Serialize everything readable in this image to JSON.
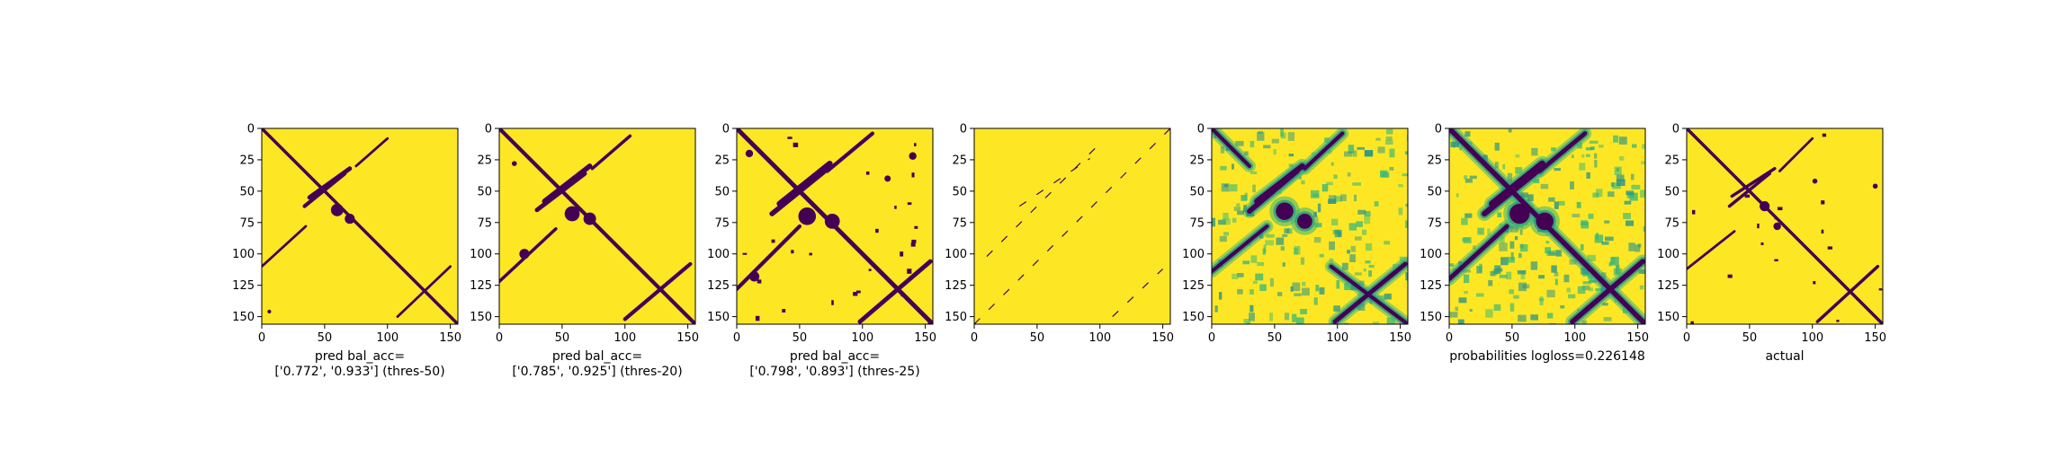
{
  "figure": {
    "background": "#ffffff"
  },
  "colormap": {
    "low": "#440154",
    "mid_low": "#31688e",
    "mid": "#21918c",
    "mid_high": "#35b779",
    "high": "#fde725"
  },
  "chart_data": [
    {
      "type": "heatmap",
      "xlabel": "pred bal_acc=\n['0.772', '0.933'] (thres-50)",
      "xlim": [
        0,
        156
      ],
      "ylim": [
        156,
        0
      ],
      "x_ticks": [
        0,
        50,
        100,
        150
      ],
      "y_ticks": [
        0,
        25,
        50,
        75,
        100,
        125,
        150
      ],
      "binary": true,
      "features": [
        {
          "kind": "diag",
          "from": [
            0,
            0
          ],
          "to": [
            156,
            156
          ],
          "w": 2.5
        },
        {
          "kind": "band",
          "from": [
            38,
            55
          ],
          "to": [
            70,
            32
          ],
          "w": 3.5
        },
        {
          "kind": "band",
          "from": [
            34,
            62
          ],
          "to": [
            66,
            36
          ],
          "w": 3
        },
        {
          "kind": "band",
          "from": [
            75,
            30
          ],
          "to": [
            100,
            8
          ],
          "w": 2
        },
        {
          "kind": "band",
          "from": [
            0,
            110
          ],
          "to": [
            35,
            78
          ],
          "w": 2
        },
        {
          "kind": "band",
          "from": [
            108,
            150
          ],
          "to": [
            150,
            110
          ],
          "w": 2
        },
        {
          "kind": "blob",
          "at": [
            60,
            65
          ],
          "r": 5
        },
        {
          "kind": "blob",
          "at": [
            70,
            72
          ],
          "r": 4
        },
        {
          "kind": "blob",
          "at": [
            6,
            146
          ],
          "r": 1.5
        }
      ]
    },
    {
      "type": "heatmap",
      "xlabel": "pred bal_acc=\n['0.785', '0.925'] (thres-20)",
      "xlim": [
        0,
        156
      ],
      "ylim": [
        156,
        0
      ],
      "x_ticks": [
        0,
        50,
        100,
        150
      ],
      "y_ticks": [
        0,
        25,
        50,
        75,
        100,
        125,
        150
      ],
      "binary": true,
      "features": [
        {
          "kind": "diag",
          "from": [
            0,
            0
          ],
          "to": [
            156,
            156
          ],
          "w": 3
        },
        {
          "kind": "band",
          "from": [
            36,
            58
          ],
          "to": [
            72,
            30
          ],
          "w": 4
        },
        {
          "kind": "band",
          "from": [
            30,
            65
          ],
          "to": [
            68,
            36
          ],
          "w": 3.5
        },
        {
          "kind": "band",
          "from": [
            74,
            32
          ],
          "to": [
            104,
            6
          ],
          "w": 2.5
        },
        {
          "kind": "band",
          "from": [
            0,
            122
          ],
          "to": [
            45,
            80
          ],
          "w": 2.5
        },
        {
          "kind": "band",
          "from": [
            100,
            152
          ],
          "to": [
            152,
            108
          ],
          "w": 3
        },
        {
          "kind": "blob",
          "at": [
            58,
            68
          ],
          "r": 6
        },
        {
          "kind": "blob",
          "at": [
            72,
            72
          ],
          "r": 5
        },
        {
          "kind": "blob",
          "at": [
            20,
            100
          ],
          "r": 4
        },
        {
          "kind": "blob",
          "at": [
            12,
            28
          ],
          "r": 2
        }
      ]
    },
    {
      "type": "heatmap",
      "xlabel": "pred bal_acc=\n['0.798', '0.893'] (thres-25)",
      "xlim": [
        0,
        156
      ],
      "ylim": [
        156,
        0
      ],
      "x_ticks": [
        0,
        50,
        100,
        150
      ],
      "y_ticks": [
        0,
        25,
        50,
        75,
        100,
        125,
        150
      ],
      "binary": true,
      "features": [
        {
          "kind": "diag",
          "from": [
            0,
            0
          ],
          "to": [
            156,
            156
          ],
          "w": 3.5
        },
        {
          "kind": "band",
          "from": [
            34,
            60
          ],
          "to": [
            74,
            28
          ],
          "w": 4.5
        },
        {
          "kind": "band",
          "from": [
            28,
            68
          ],
          "to": [
            70,
            34
          ],
          "w": 4
        },
        {
          "kind": "band",
          "from": [
            72,
            34
          ],
          "to": [
            108,
            4
          ],
          "w": 3
        },
        {
          "kind": "band",
          "from": [
            0,
            128
          ],
          "to": [
            50,
            78
          ],
          "w": 3
        },
        {
          "kind": "band",
          "from": [
            98,
            154
          ],
          "to": [
            154,
            106
          ],
          "w": 3.5
        },
        {
          "kind": "blob",
          "at": [
            56,
            70
          ],
          "r": 7
        },
        {
          "kind": "blob",
          "at": [
            76,
            74
          ],
          "r": 6
        },
        {
          "kind": "blob",
          "at": [
            14,
            118
          ],
          "r": 4
        },
        {
          "kind": "blob",
          "at": [
            140,
            22
          ],
          "r": 3
        },
        {
          "kind": "blob",
          "at": [
            10,
            20
          ],
          "r": 3
        },
        {
          "kind": "blob",
          "at": [
            120,
            40
          ],
          "r": 2.5
        }
      ],
      "noise": 0.01
    },
    {
      "type": "heatmap",
      "xlabel": "",
      "xlim": [
        0,
        156
      ],
      "ylim": [
        156,
        0
      ],
      "x_ticks": [
        0,
        50,
        100,
        150
      ],
      "y_ticks": [
        0,
        25,
        50,
        75,
        100,
        125,
        150
      ],
      "binary": true,
      "features": [
        {
          "kind": "band",
          "from": [
            0,
            156
          ],
          "to": [
            156,
            0
          ],
          "w": 0.8
        },
        {
          "kind": "band",
          "from": [
            10,
            102
          ],
          "to": [
            100,
            12
          ],
          "w": 0.8
        },
        {
          "kind": "band",
          "from": [
            36,
            62
          ],
          "to": [
            92,
            24
          ],
          "w": 0.7
        },
        {
          "kind": "band",
          "from": [
            110,
            150
          ],
          "to": [
            150,
            112
          ],
          "w": 0.7
        }
      ],
      "sparse": true
    },
    {
      "type": "heatmap",
      "xlabel": "",
      "xlim": [
        0,
        156
      ],
      "ylim": [
        156,
        0
      ],
      "x_ticks": [
        0,
        50,
        100,
        150
      ],
      "y_ticks": [
        0,
        25,
        50,
        75,
        100,
        125,
        150
      ],
      "binary": false,
      "features": [
        {
          "kind": "diag",
          "from": [
            0,
            0
          ],
          "to": [
            30,
            30
          ],
          "w": 3
        },
        {
          "kind": "band",
          "from": [
            36,
            58
          ],
          "to": [
            72,
            30
          ],
          "w": 4.5
        },
        {
          "kind": "band",
          "from": [
            30,
            66
          ],
          "to": [
            68,
            34
          ],
          "w": 4
        },
        {
          "kind": "band",
          "from": [
            74,
            32
          ],
          "to": [
            104,
            4
          ],
          "w": 3
        },
        {
          "kind": "band",
          "from": [
            0,
            114
          ],
          "to": [
            44,
            78
          ],
          "w": 3
        },
        {
          "kind": "band",
          "from": [
            98,
            154
          ],
          "to": [
            154,
            108
          ],
          "w": 3.5
        },
        {
          "kind": "diag",
          "from": [
            95,
            110
          ],
          "to": [
            156,
            156
          ],
          "w": 3
        },
        {
          "kind": "blob",
          "at": [
            58,
            66
          ],
          "r": 7
        },
        {
          "kind": "blob",
          "at": [
            74,
            74
          ],
          "r": 6
        }
      ],
      "noise": 0.2
    },
    {
      "type": "heatmap",
      "xlabel": "probabilities logloss=0.226148",
      "xlim": [
        0,
        156
      ],
      "ylim": [
        156,
        0
      ],
      "x_ticks": [
        0,
        50,
        100,
        150
      ],
      "y_ticks": [
        0,
        25,
        50,
        75,
        100,
        125,
        150
      ],
      "binary": false,
      "features": [
        {
          "kind": "diag",
          "from": [
            0,
            0
          ],
          "to": [
            156,
            156
          ],
          "w": 4
        },
        {
          "kind": "band",
          "from": [
            34,
            60
          ],
          "to": [
            74,
            28
          ],
          "w": 5
        },
        {
          "kind": "band",
          "from": [
            28,
            68
          ],
          "to": [
            70,
            34
          ],
          "w": 4.5
        },
        {
          "kind": "band",
          "from": [
            72,
            34
          ],
          "to": [
            108,
            4
          ],
          "w": 3.5
        },
        {
          "kind": "band",
          "from": [
            0,
            120
          ],
          "to": [
            46,
            78
          ],
          "w": 3.5
        },
        {
          "kind": "band",
          "from": [
            98,
            154
          ],
          "to": [
            154,
            106
          ],
          "w": 4
        },
        {
          "kind": "blob",
          "at": [
            56,
            68
          ],
          "r": 8
        },
        {
          "kind": "blob",
          "at": [
            76,
            74
          ],
          "r": 7
        }
      ],
      "noise": 0.22
    },
    {
      "type": "heatmap",
      "xlabel": "actual",
      "xlim": [
        0,
        156
      ],
      "ylim": [
        156,
        0
      ],
      "x_ticks": [
        0,
        50,
        100,
        150
      ],
      "y_ticks": [
        0,
        25,
        50,
        75,
        100,
        125,
        150
      ],
      "binary": true,
      "features": [
        {
          "kind": "diag",
          "from": [
            0,
            0
          ],
          "to": [
            156,
            156
          ],
          "w": 2.5
        },
        {
          "kind": "band",
          "from": [
            36,
            54
          ],
          "to": [
            70,
            32
          ],
          "w": 2.5
        },
        {
          "kind": "band",
          "from": [
            34,
            62
          ],
          "to": [
            66,
            36
          ],
          "w": 2.5
        },
        {
          "kind": "band",
          "from": [
            74,
            34
          ],
          "to": [
            100,
            8
          ],
          "w": 2
        },
        {
          "kind": "band",
          "from": [
            0,
            112
          ],
          "to": [
            38,
            82
          ],
          "w": 2
        },
        {
          "kind": "band",
          "from": [
            104,
            154
          ],
          "to": [
            152,
            110
          ],
          "w": 2.5
        },
        {
          "kind": "blob",
          "at": [
            62,
            62
          ],
          "r": 4
        },
        {
          "kind": "blob",
          "at": [
            72,
            78
          ],
          "r": 3
        },
        {
          "kind": "blob",
          "at": [
            150,
            46
          ],
          "r": 2
        },
        {
          "kind": "blob",
          "at": [
            102,
            42
          ],
          "r": 2
        }
      ],
      "noise": 0.006
    }
  ]
}
